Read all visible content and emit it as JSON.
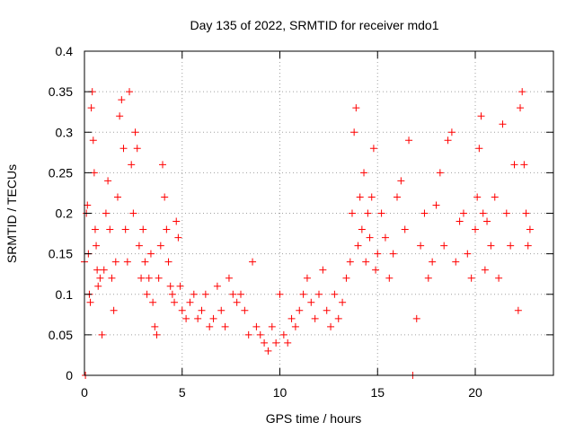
{
  "chart_data": {
    "type": "scatter",
    "title": "Day 135 of 2022, SRMTID for receiver mdo1",
    "xlabel": "GPS time / hours",
    "ylabel": "SRMTID / TECUs",
    "xlim": [
      0,
      24
    ],
    "ylim": [
      0,
      0.4
    ],
    "xticks": [
      0,
      5,
      10,
      15,
      20
    ],
    "yticks": [
      0,
      0.05,
      0.1,
      0.15,
      0.2,
      0.25,
      0.3,
      0.35,
      0.4
    ],
    "xtick_labels": [
      "0",
      "5",
      "10",
      "15",
      "20"
    ],
    "ytick_labels": [
      "0",
      "0.05",
      "0.1",
      "0.15",
      "0.2",
      "0.25",
      "0.3",
      "0.35",
      "0.4"
    ],
    "grid": true,
    "marker": "+",
    "series": [
      {
        "name": "SRMTID mdo1",
        "color": "#ff0000",
        "x": [
          0.0,
          0.05,
          0.1,
          0.15,
          0.2,
          0.25,
          0.3,
          0.35,
          0.4,
          0.45,
          0.5,
          0.55,
          0.6,
          0.65,
          0.7,
          0.8,
          0.9,
          1.0,
          1.1,
          1.2,
          1.3,
          1.4,
          1.5,
          1.6,
          1.7,
          1.8,
          1.9,
          2.0,
          2.1,
          2.2,
          2.3,
          2.4,
          2.5,
          2.6,
          2.7,
          2.8,
          2.9,
          3.0,
          3.1,
          3.2,
          3.3,
          3.4,
          3.5,
          3.6,
          3.7,
          3.8,
          3.9,
          4.0,
          4.1,
          4.2,
          4.3,
          4.4,
          4.5,
          4.6,
          4.7,
          4.8,
          4.9,
          5.0,
          5.2,
          5.4,
          5.6,
          5.8,
          6.0,
          6.2,
          6.4,
          6.6,
          6.8,
          7.0,
          7.2,
          7.4,
          7.6,
          7.8,
          8.0,
          8.2,
          8.4,
          8.6,
          8.8,
          9.0,
          9.2,
          9.4,
          9.6,
          9.8,
          10.0,
          10.2,
          10.4,
          10.6,
          10.8,
          11.0,
          11.2,
          11.4,
          11.6,
          11.8,
          12.0,
          12.2,
          12.4,
          12.6,
          12.8,
          13.0,
          13.2,
          13.4,
          13.6,
          13.7,
          13.8,
          13.9,
          14.0,
          14.1,
          14.2,
          14.3,
          14.4,
          14.5,
          14.6,
          14.7,
          14.8,
          14.9,
          15.0,
          15.2,
          15.4,
          15.6,
          15.8,
          16.0,
          16.2,
          16.4,
          16.6,
          16.8,
          17.0,
          17.2,
          17.4,
          17.6,
          17.8,
          18.0,
          18.2,
          18.4,
          18.6,
          18.8,
          19.0,
          19.2,
          19.4,
          19.6,
          19.8,
          20.0,
          20.1,
          20.2,
          20.3,
          20.4,
          20.5,
          20.6,
          20.8,
          21.0,
          21.2,
          21.4,
          21.6,
          21.8,
          22.0,
          22.2,
          22.3,
          22.4,
          22.5,
          22.6,
          22.7,
          22.8
        ],
        "values": [
          0.14,
          0.0,
          0.2,
          0.21,
          0.15,
          0.1,
          0.09,
          0.33,
          0.35,
          0.29,
          0.25,
          0.18,
          0.16,
          0.13,
          0.11,
          0.12,
          0.05,
          0.13,
          0.2,
          0.24,
          0.18,
          0.12,
          0.08,
          0.14,
          0.22,
          0.32,
          0.34,
          0.28,
          0.18,
          0.14,
          0.35,
          0.26,
          0.2,
          0.3,
          0.28,
          0.16,
          0.12,
          0.18,
          0.14,
          0.1,
          0.12,
          0.15,
          0.09,
          0.06,
          0.05,
          0.12,
          0.16,
          0.26,
          0.22,
          0.18,
          0.14,
          0.11,
          0.1,
          0.09,
          0.19,
          0.17,
          0.11,
          0.08,
          0.07,
          0.09,
          0.1,
          0.07,
          0.08,
          0.1,
          0.06,
          0.07,
          0.11,
          0.08,
          0.06,
          0.12,
          0.1,
          0.09,
          0.1,
          0.08,
          0.05,
          0.14,
          0.06,
          0.05,
          0.04,
          0.03,
          0.06,
          0.04,
          0.1,
          0.05,
          0.04,
          0.07,
          0.06,
          0.08,
          0.1,
          0.12,
          0.09,
          0.07,
          0.1,
          0.13,
          0.08,
          0.06,
          0.1,
          0.07,
          0.09,
          0.12,
          0.14,
          0.2,
          0.3,
          0.33,
          0.16,
          0.22,
          0.18,
          0.25,
          0.14,
          0.2,
          0.17,
          0.22,
          0.28,
          0.13,
          0.15,
          0.2,
          0.17,
          0.12,
          0.15,
          0.22,
          0.24,
          0.18,
          0.29,
          0.0,
          0.07,
          0.16,
          0.2,
          0.12,
          0.14,
          0.21,
          0.25,
          0.16,
          0.29,
          0.3,
          0.14,
          0.19,
          0.2,
          0.15,
          0.12,
          0.18,
          0.22,
          0.28,
          0.32,
          0.2,
          0.13,
          0.19,
          0.16,
          0.22,
          0.12,
          0.31,
          0.2,
          0.16,
          0.26,
          0.08,
          0.33,
          0.35,
          0.26,
          0.2,
          0.16,
          0.18
        ]
      }
    ]
  }
}
